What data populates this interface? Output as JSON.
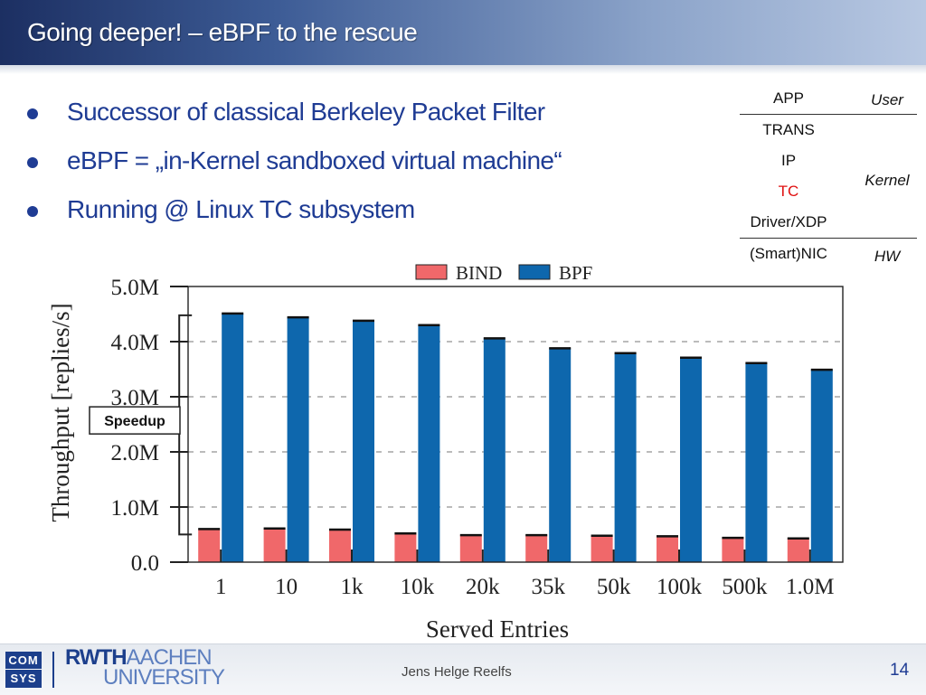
{
  "slide": {
    "title": "Going deeper! – eBPF to the rescue",
    "bullets": [
      "Successor of classical Berkeley Packet Filter",
      "eBPF = „in-Kernel sandboxed virtual machine“",
      "Running @ Linux TC subsystem"
    ]
  },
  "network_stack": {
    "layers": [
      {
        "label": "APP",
        "color": "#111111"
      },
      {
        "label": "TRANS",
        "color": "#111111"
      },
      {
        "label": "IP",
        "color": "#111111"
      },
      {
        "label": "TC",
        "color": "#e01010"
      },
      {
        "label": "Driver/XDP",
        "color": "#111111"
      },
      {
        "label": "(Smart)NIC",
        "color": "#111111"
      }
    ],
    "zones": [
      "User",
      "Kernel",
      "HW"
    ]
  },
  "chart_data": {
    "type": "bar",
    "xlabel": "Served Entries",
    "ylabel": "Throughput [replies/s]",
    "ylim": [
      0,
      5000000
    ],
    "yticks": [
      0,
      1000000,
      2000000,
      3000000,
      4000000,
      5000000
    ],
    "ytick_labels": [
      "0.0",
      "1.0M",
      "2.0M",
      "3.0M",
      "4.0M",
      "5.0M"
    ],
    "grid": "horizontal dashed",
    "legend": "top",
    "categories": [
      "1",
      "10",
      "1k",
      "10k",
      "20k",
      "35k",
      "50k",
      "100k",
      "500k",
      "1.0M"
    ],
    "series": [
      {
        "name": "BIND",
        "color": "#f0686a",
        "values": [
          600000,
          610000,
          590000,
          520000,
          490000,
          490000,
          480000,
          470000,
          440000,
          430000
        ]
      },
      {
        "name": "BPF",
        "color": "#0e67ad",
        "values": [
          4510000,
          4440000,
          4380000,
          4300000,
          4060000,
          3880000,
          3790000,
          3710000,
          3610000,
          3490000
        ]
      }
    ],
    "annotation": "Speedup"
  },
  "footer": {
    "logo_comsys_line1": "COM",
    "logo_comsys_line2": "SYS",
    "logo_rwth_bold": "RWTH",
    "logo_rwth_light": "AACHEN",
    "logo_rwth_line2": "UNIVERSITY",
    "presenter": "Jens Helge Reelfs",
    "page_number": "14"
  }
}
